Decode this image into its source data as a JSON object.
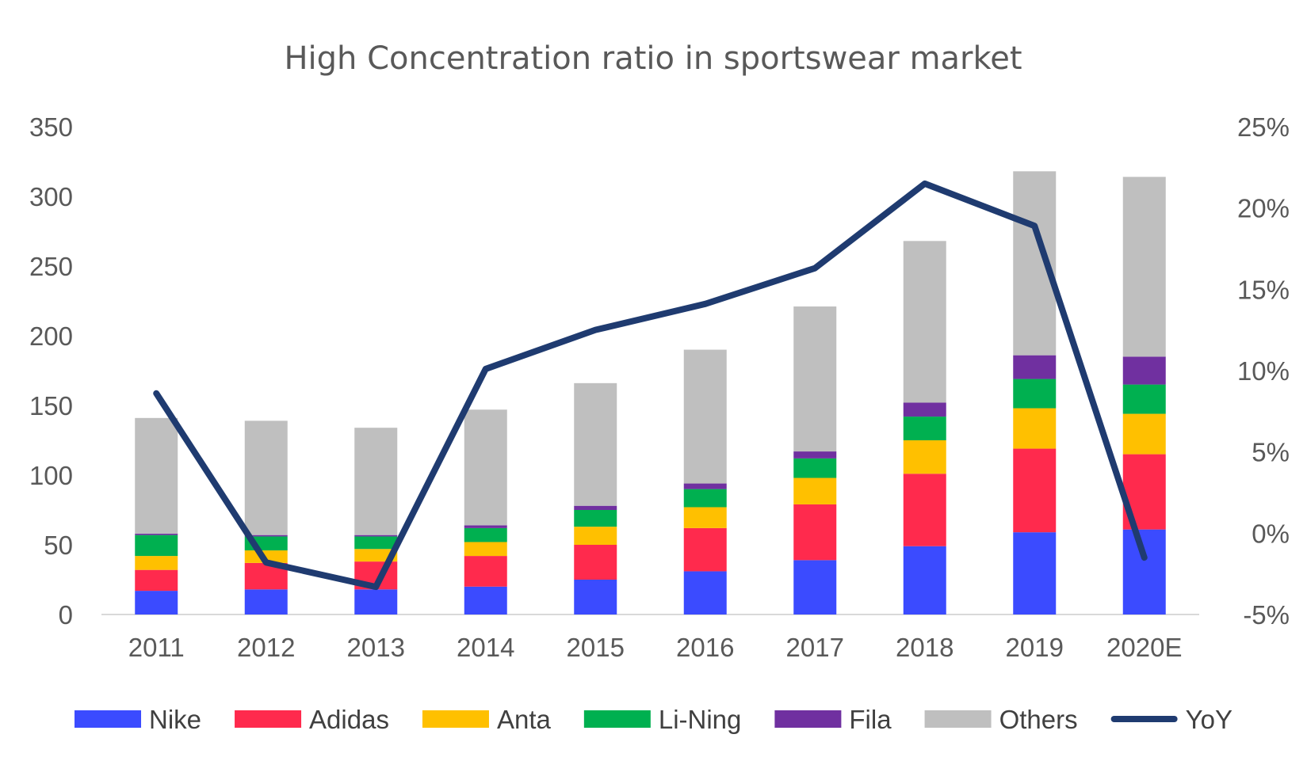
{
  "chart_data": {
    "type": "bar",
    "title": "High Concentration ratio in sportswear market",
    "categories": [
      "2011",
      "2012",
      "2013",
      "2014",
      "2015",
      "2016",
      "2017",
      "2018",
      "2019",
      "2020E"
    ],
    "stacked": true,
    "ylim": [
      0,
      350
    ],
    "y_ticks": [
      "0",
      "50",
      "100",
      "150",
      "200",
      "250",
      "300",
      "350"
    ],
    "y2lim": [
      -5,
      25
    ],
    "y2_ticks": [
      "-5%",
      "0%",
      "5%",
      "10%",
      "15%",
      "20%",
      "25%"
    ],
    "series": [
      {
        "name": "Nike",
        "color": "#3b4bff",
        "values": [
          17,
          18,
          18,
          20,
          25,
          31,
          39,
          49,
          59,
          61
        ]
      },
      {
        "name": "Adidas",
        "color": "#ff2a4d",
        "values": [
          15,
          19,
          20,
          22,
          25,
          31,
          40,
          52,
          60,
          54
        ]
      },
      {
        "name": "Anta",
        "color": "#ffc000",
        "values": [
          10,
          9,
          9,
          10,
          13,
          15,
          19,
          24,
          29,
          29
        ]
      },
      {
        "name": "Li-Ning",
        "color": "#00b050",
        "values": [
          15,
          10,
          9,
          10,
          12,
          13,
          14,
          17,
          21,
          21
        ]
      },
      {
        "name": "Fila",
        "color": "#7030a0",
        "values": [
          1,
          1,
          1,
          2,
          3,
          4,
          5,
          10,
          17,
          20
        ]
      },
      {
        "name": "Others",
        "color": "#bfbfbf",
        "values": [
          83,
          82,
          77,
          83,
          88,
          96,
          104,
          116,
          132,
          129
        ]
      }
    ],
    "line_series": {
      "name": "YoY",
      "color": "#1f3b70",
      "axis": "secondary",
      "values": [
        8.6,
        -1.8,
        -3.3,
        10.1,
        12.5,
        14.1,
        16.3,
        21.5,
        18.9,
        -1.5
      ]
    },
    "legend_position": "bottom",
    "grid": false
  }
}
